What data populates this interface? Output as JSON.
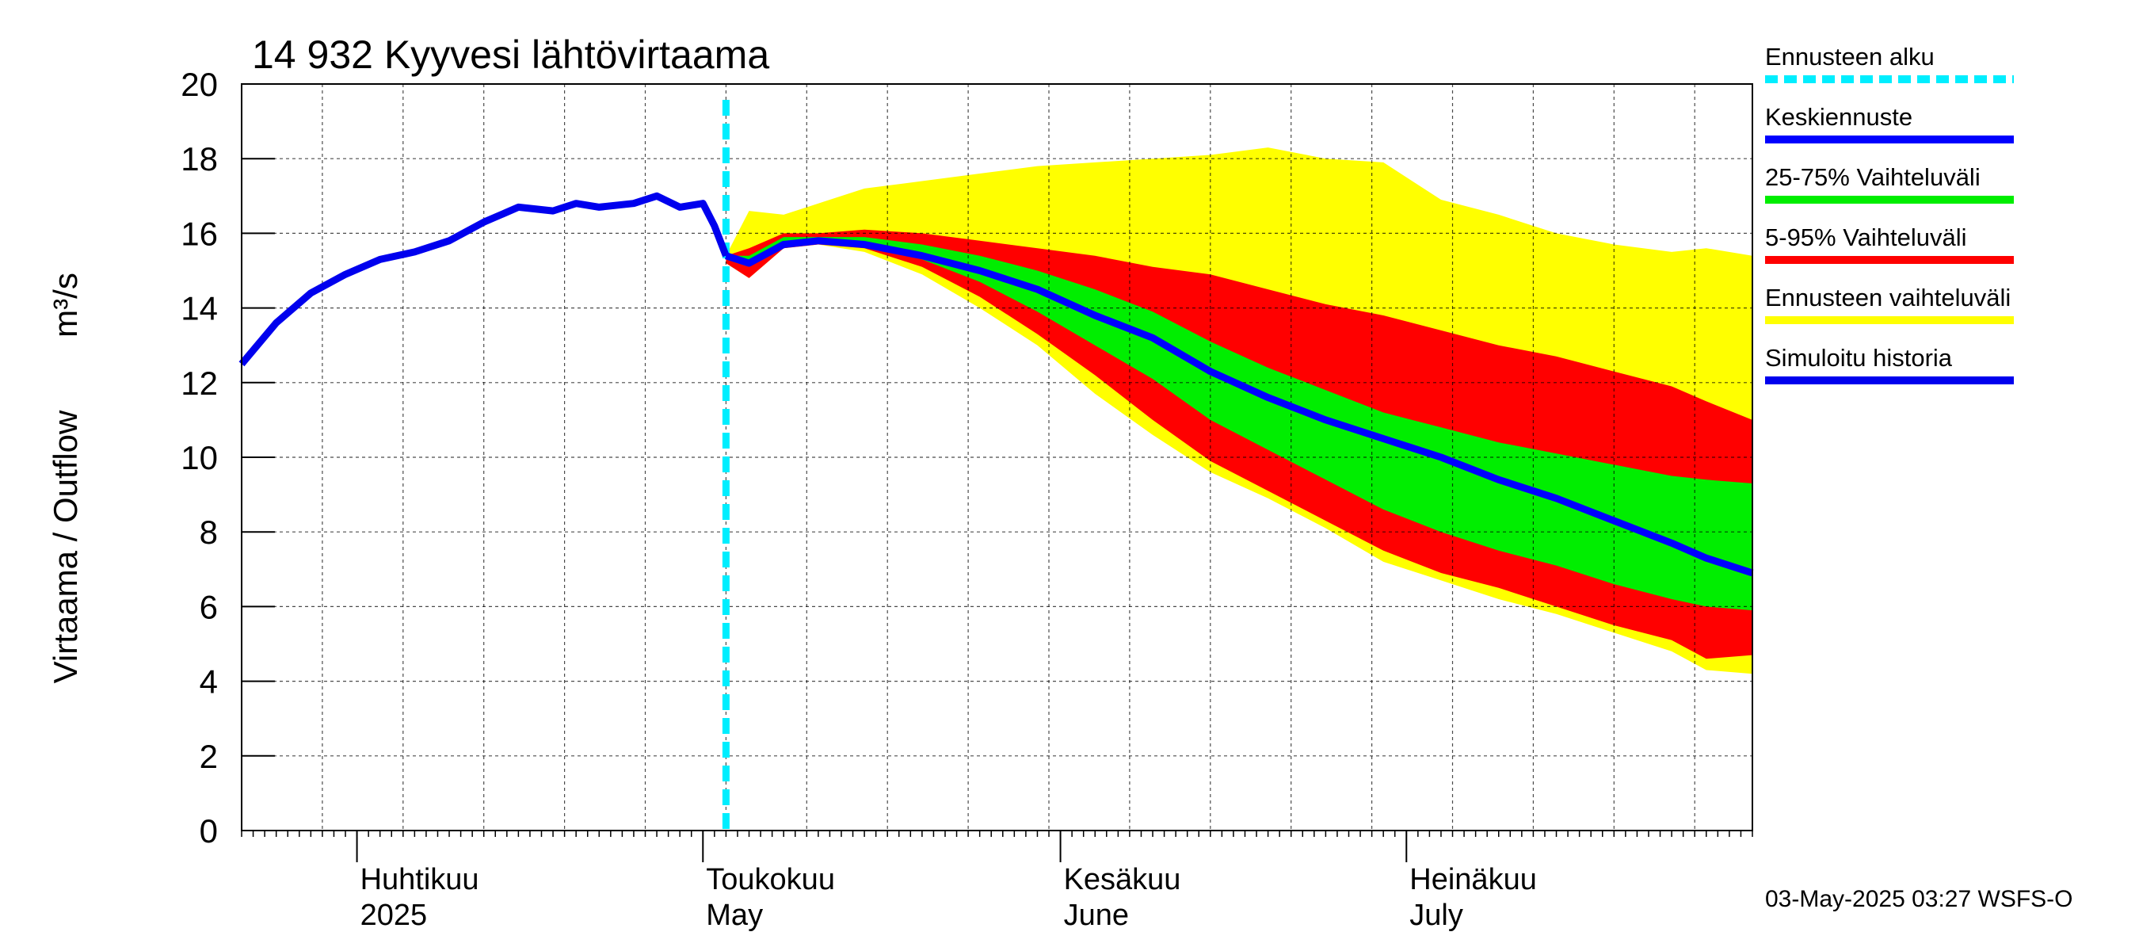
{
  "chart_data": {
    "type": "area",
    "title": "14 932 Kyyvesi lähtövirtaama",
    "ylabel_fi": "Virtaama / Outflow",
    "ylabel_unit": "m³/s",
    "ylim": [
      0,
      20
    ],
    "yticks": [
      "0",
      "2",
      "4",
      "6",
      "8",
      "10",
      "12",
      "14",
      "16",
      "18",
      "20"
    ],
    "x_start": "2025-03-22",
    "x_end": "2025-07-31",
    "forecast_start": "2025-05-03",
    "months": [
      {
        "fi": "Huhtikuu",
        "en": "2025",
        "date": "2025-04-01"
      },
      {
        "fi": "Toukokuu",
        "en": "May",
        "date": "2025-05-01"
      },
      {
        "fi": "Kesäkuu",
        "en": "June",
        "date": "2025-06-01"
      },
      {
        "fi": "Heinäkuu",
        "en": "July",
        "date": "2025-07-01"
      }
    ],
    "history": {
      "dates": [
        "2025-03-22",
        "2025-03-25",
        "2025-03-28",
        "2025-03-31",
        "2025-04-03",
        "2025-04-06",
        "2025-04-09",
        "2025-04-12",
        "2025-04-15",
        "2025-04-18",
        "2025-04-20",
        "2025-04-22",
        "2025-04-25",
        "2025-04-27",
        "2025-04-29",
        "2025-05-01",
        "2025-05-02",
        "2025-05-03"
      ],
      "values": [
        12.5,
        13.6,
        14.4,
        14.9,
        15.3,
        15.5,
        15.8,
        16.3,
        16.7,
        16.6,
        16.8,
        16.7,
        16.8,
        17.0,
        16.7,
        16.8,
        16.2,
        15.4
      ]
    },
    "forecast_dates": [
      "2025-05-03",
      "2025-05-05",
      "2025-05-08",
      "2025-05-11",
      "2025-05-15",
      "2025-05-20",
      "2025-05-25",
      "2025-05-30",
      "2025-06-04",
      "2025-06-09",
      "2025-06-14",
      "2025-06-19",
      "2025-06-24",
      "2025-06-29",
      "2025-07-04",
      "2025-07-09",
      "2025-07-14",
      "2025-07-19",
      "2025-07-24",
      "2025-07-27",
      "2025-07-31"
    ],
    "series": [
      {
        "name": "Ennusteen vaihteluväli",
        "color": "#ffff00",
        "low": [
          15.2,
          14.8,
          15.6,
          15.7,
          15.5,
          14.9,
          14.0,
          13.0,
          11.7,
          10.6,
          9.6,
          8.9,
          8.1,
          7.2,
          6.7,
          6.2,
          5.8,
          5.3,
          4.8,
          4.3,
          4.2
        ],
        "high": [
          15.4,
          16.6,
          16.5,
          16.8,
          17.2,
          17.4,
          17.6,
          17.8,
          17.9,
          18.0,
          18.1,
          18.3,
          18.0,
          17.9,
          16.9,
          16.5,
          16.0,
          15.7,
          15.5,
          15.6,
          15.4
        ]
      },
      {
        "name": "5-95% Vaihteluväli",
        "color": "#ff0000",
        "low": [
          15.2,
          14.8,
          15.6,
          15.7,
          15.6,
          15.1,
          14.3,
          13.3,
          12.2,
          11.0,
          9.9,
          9.1,
          8.3,
          7.5,
          6.9,
          6.5,
          6.0,
          5.5,
          5.1,
          4.6,
          4.7
        ],
        "high": [
          15.4,
          15.6,
          16.0,
          16.0,
          16.1,
          16.0,
          15.8,
          15.6,
          15.4,
          15.1,
          14.9,
          14.5,
          14.1,
          13.8,
          13.4,
          13.0,
          12.7,
          12.3,
          11.9,
          11.5,
          11.0
        ]
      },
      {
        "name": "25-75% Vaihteluväli",
        "color": "#00ee00",
        "low": [
          15.3,
          15.1,
          15.7,
          15.8,
          15.7,
          15.3,
          14.7,
          13.9,
          13.0,
          12.1,
          11.0,
          10.2,
          9.4,
          8.6,
          8.0,
          7.5,
          7.1,
          6.6,
          6.2,
          6.0,
          5.9
        ],
        "high": [
          15.4,
          15.4,
          15.9,
          15.9,
          15.9,
          15.7,
          15.4,
          15.0,
          14.5,
          13.9,
          13.1,
          12.4,
          11.8,
          11.2,
          10.8,
          10.4,
          10.1,
          9.8,
          9.5,
          9.4,
          9.3
        ]
      },
      {
        "name": "Keskiennuste",
        "color": "#0000ff",
        "values": [
          15.4,
          15.2,
          15.7,
          15.8,
          15.7,
          15.4,
          15.0,
          14.5,
          13.8,
          13.2,
          12.3,
          11.6,
          11.0,
          10.5,
          10.0,
          9.4,
          8.9,
          8.3,
          7.7,
          7.3,
          6.9
        ]
      }
    ],
    "legend": [
      {
        "label": "Ennusteen alku",
        "color": "#00eeff",
        "style": "dashed"
      },
      {
        "label": "Keskiennuste",
        "color": "#0000ff",
        "style": "solid"
      },
      {
        "label": "25-75% Vaihteluväli",
        "color": "#00ee00",
        "style": "solid"
      },
      {
        "label": "5-95% Vaihteluväli",
        "color": "#ff0000",
        "style": "solid"
      },
      {
        "label": "Ennusteen vaihteluväli",
        "color": "#ffff00",
        "style": "solid"
      },
      {
        "label": "Simuloitu historia",
        "color": "#0000ee",
        "style": "solid"
      }
    ],
    "legend_placement": "right",
    "grid": true,
    "footer": "03-May-2025 03:27 WSFS-O"
  }
}
